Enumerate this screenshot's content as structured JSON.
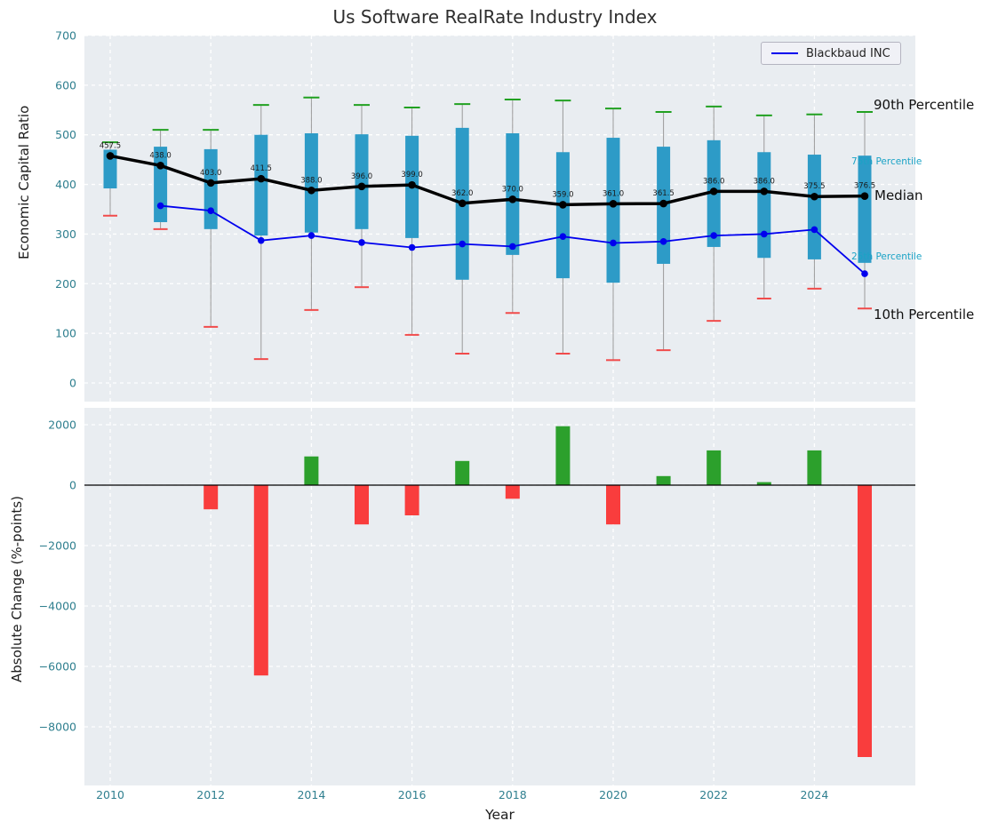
{
  "title": "Us Software RealRate Industry Index",
  "legend": {
    "label": "Blackbaud INC"
  },
  "annotations": {
    "p90": "90th Percentile",
    "p75": "75th Percentile",
    "median": "Median",
    "p25": "25th Percentile",
    "p10": "10th Percentile"
  },
  "colors": {
    "panel_bg": "#e9edf1",
    "grid": "#ffffff",
    "tick": "#2f7f8f",
    "box": "#2d9bc7",
    "median_line": "#000000",
    "company_line": "#0000ee",
    "p90_cap": "#21a121",
    "p10_cap": "#f14b4b",
    "bar_positive": "#2ca02c",
    "bar_negative": "#f93d3d",
    "annotation_teal": "#1ba3c6"
  },
  "chart_data": [
    {
      "type": "boxplot",
      "title": "Us Software RealRate Industry Index",
      "ylabel": "Economic Capital Ratio",
      "ylim": [
        -38,
        700
      ],
      "yticks": [
        0,
        100,
        200,
        300,
        400,
        500,
        600,
        700
      ],
      "grid": true,
      "legend_position": "upper right",
      "years": [
        2010,
        2011,
        2012,
        2013,
        2014,
        2015,
        2016,
        2017,
        2018,
        2019,
        2020,
        2021,
        2022,
        2023,
        2024,
        2025
      ],
      "xticks": [
        2010,
        2012,
        2014,
        2016,
        2018,
        2020,
        2022,
        2024
      ],
      "series": {
        "p90": [
          485,
          510,
          510,
          560,
          575,
          560,
          555,
          562,
          571,
          569,
          553,
          546,
          557,
          539,
          541,
          546
        ],
        "p75": [
          470,
          476,
          471,
          500,
          503,
          501,
          498,
          514,
          503,
          465,
          494,
          476,
          489,
          465,
          460,
          458
        ],
        "median": [
          457.5,
          438.0,
          403.0,
          411.5,
          388.0,
          396.0,
          399.0,
          362.0,
          370.0,
          359.0,
          361.0,
          361.5,
          386.0,
          386.0,
          375.5,
          376.5
        ],
        "p25": [
          392,
          324,
          310,
          297,
          303,
          310,
          292,
          208,
          258,
          211,
          202,
          240,
          274,
          252,
          249,
          242
        ],
        "p10": [
          337,
          310,
          113,
          48,
          147,
          193,
          97,
          59,
          141,
          59,
          46,
          66,
          125,
          170,
          190,
          150
        ],
        "company": [
          null,
          357,
          347,
          287,
          297,
          283,
          273,
          280,
          275,
          295,
          282,
          285,
          297,
          300,
          309,
          220
        ]
      },
      "median_labels": [
        "457.5",
        "438.0",
        "403.0",
        "411.5",
        "388.0",
        "396.0",
        "399.0",
        "362.0",
        "370.0",
        "359.0",
        "361.0",
        "361.5",
        "386.0",
        "386.0",
        "375.5",
        "376.5"
      ],
      "company_name": "Blackbaud INC"
    },
    {
      "type": "bar",
      "ylabel": "Absolute Change (%-points)",
      "xlabel": "Year",
      "ylim": [
        -9950,
        2560
      ],
      "yticks": [
        2000,
        0,
        -2000,
        -4000,
        -6000,
        -8000
      ],
      "zero_line": true,
      "years": [
        2010,
        2011,
        2012,
        2013,
        2014,
        2015,
        2016,
        2017,
        2018,
        2019,
        2020,
        2021,
        2022,
        2023,
        2024,
        2025
      ],
      "xticks": [
        2010,
        2012,
        2014,
        2016,
        2018,
        2020,
        2022,
        2024
      ],
      "values": [
        0,
        0,
        -800,
        -6300,
        950,
        -1300,
        -1000,
        800,
        -450,
        1950,
        -1300,
        300,
        1150,
        100,
        1150,
        -9000
      ]
    }
  ]
}
